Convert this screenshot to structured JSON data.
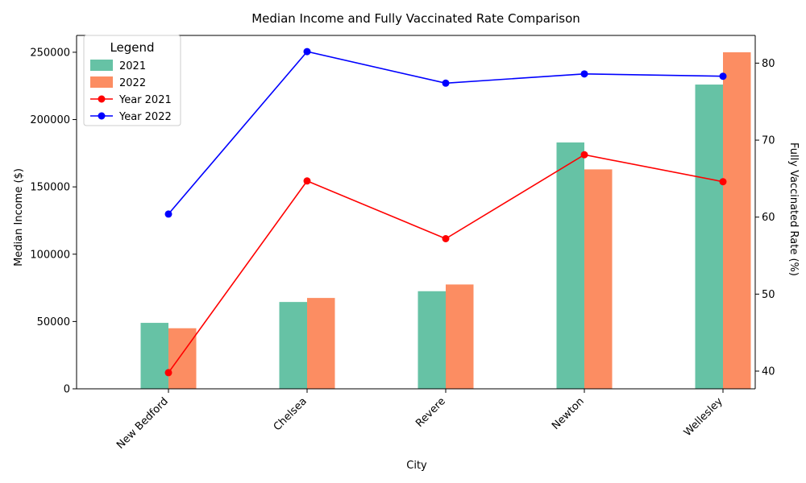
{
  "chart_data": {
    "type": "bar",
    "title": "Median Income and Fully Vaccinated Rate Comparison",
    "xlabel": "City",
    "ylabel": "Median Income ($)",
    "y2label": "Fully Vaccinated Rate (%)",
    "categories": [
      "New Bedford",
      "Chelsea",
      "Revere",
      "Newton",
      "Wellesley"
    ],
    "bar_series": [
      {
        "name": "2021",
        "color": "#66c2a5",
        "values": [
          49000,
          64500,
          72500,
          183000,
          226000
        ]
      },
      {
        "name": "2022",
        "color": "#fc8d62",
        "values": [
          45000,
          67500,
          77500,
          163000,
          250000
        ]
      }
    ],
    "line_series": [
      {
        "name": "Year 2021",
        "color": "#ff0000",
        "values": [
          39.8,
          64.7,
          57.2,
          68.1,
          64.6
        ]
      },
      {
        "name": "Year 2022",
        "color": "#0000ff",
        "values": [
          60.4,
          81.5,
          77.4,
          78.6,
          78.3
        ]
      }
    ],
    "ylim": [
      0,
      262500
    ],
    "y2lim": [
      37.7,
      83.6
    ],
    "yticks": [
      0,
      50000,
      100000,
      150000,
      200000,
      250000
    ],
    "y2ticks": [
      40,
      50,
      60,
      70,
      80
    ],
    "legend": {
      "title": "Legend",
      "placement": "top-left"
    },
    "grid": false
  }
}
